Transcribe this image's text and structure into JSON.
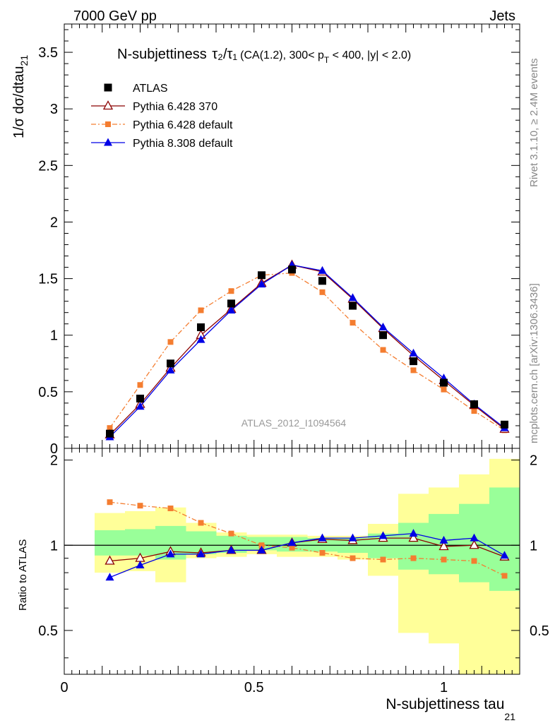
{
  "header": {
    "left": "7000 GeV pp",
    "right": "Jets"
  },
  "side_labels": {
    "rivet": "Rivet 3.1.10, ≥ 2.4M events",
    "mcplots": "mcplots.cern.ch [arXiv:1306.3436]"
  },
  "chart_data": [
    {
      "type": "scatter",
      "title_main": "N-subjettiness ",
      "title_tau_ratio": "τ₂/τ₁",
      "title_details": "(CA(1.2), 300< p",
      "title_sub": "T",
      "title_tail": " < 400, |y| < 2.0)",
      "ylabel_main": "1/σ dσ/dtau",
      "ylabel_sub": "21",
      "watermark": "ATLAS_2012_I1094564",
      "xlim": [
        0,
        1.2
      ],
      "ylim": [
        0,
        3.75
      ],
      "y_ticks": [
        0,
        0.5,
        1,
        1.5,
        2,
        2.5,
        3,
        3.5
      ],
      "y_tick_labels": [
        "0",
        "0.5",
        "1",
        "1.5",
        "2",
        "2.5",
        "3",
        "3.5"
      ],
      "legend_position": "top-left",
      "x": [
        0.12,
        0.2,
        0.28,
        0.36,
        0.44,
        0.52,
        0.6,
        0.68,
        0.76,
        0.84,
        0.92,
        1.0,
        1.08,
        1.16
      ],
      "series": [
        {
          "name": "ATLAS",
          "style": "square",
          "color": "#000000",
          "values": [
            0.13,
            0.44,
            0.75,
            1.07,
            1.28,
            1.53,
            1.58,
            1.48,
            1.26,
            1.0,
            0.77,
            0.58,
            0.39,
            0.21
          ]
        },
        {
          "name": "Pythia 6.428 370",
          "style": "open-triangle",
          "color": "#8b0000",
          "values": [
            0.12,
            0.39,
            0.71,
            1.0,
            1.23,
            1.46,
            1.62,
            1.56,
            1.32,
            1.06,
            0.82,
            0.6,
            0.38,
            0.17
          ]
        },
        {
          "name": "Pythia 6.428 default",
          "style": "small-square-dashdot",
          "color": "#f47d30",
          "values": [
            0.18,
            0.56,
            0.94,
            1.22,
            1.39,
            1.53,
            1.55,
            1.38,
            1.11,
            0.87,
            0.69,
            0.52,
            0.33,
            0.16
          ]
        },
        {
          "name": "Pythia 8.308 default",
          "style": "filled-triangle",
          "color": "#0000e6",
          "values": [
            0.1,
            0.37,
            0.69,
            0.96,
            1.22,
            1.45,
            1.62,
            1.57,
            1.33,
            1.07,
            0.84,
            0.62,
            0.39,
            0.18
          ]
        }
      ]
    },
    {
      "type": "scatter",
      "ylabel": "Ratio to ATLAS",
      "xlabel_main": "N-subjettiness tau",
      "xlabel_sub": "21",
      "xlim": [
        0,
        1.2
      ],
      "x_ticks": [
        0,
        0.5,
        1
      ],
      "x_tick_labels": [
        "0",
        "0.5",
        "1"
      ],
      "ylim": [
        0.35,
        2.2
      ],
      "y_ticks": [
        0.5,
        1,
        2
      ],
      "y_tick_labels": [
        "0.5",
        "1",
        "2"
      ],
      "reference_line": 1,
      "bin_edges": [
        0.08,
        0.16,
        0.24,
        0.32,
        0.4,
        0.48,
        0.56,
        0.64,
        0.72,
        0.8,
        0.88,
        0.96,
        1.04,
        1.12,
        1.2
      ],
      "band_green": [
        [
          0.92,
          1.13
        ],
        [
          0.92,
          1.14
        ],
        [
          0.89,
          1.17
        ],
        [
          0.93,
          1.12
        ],
        [
          0.94,
          1.08
        ],
        [
          0.96,
          1.07
        ],
        [
          0.95,
          1.07
        ],
        [
          0.95,
          1.06
        ],
        [
          0.94,
          1.06
        ],
        [
          0.9,
          1.1
        ],
        [
          0.82,
          1.2
        ],
        [
          0.79,
          1.29
        ],
        [
          0.74,
          1.4
        ],
        [
          0.69,
          1.6
        ]
      ],
      "band_yellow": [
        [
          0.8,
          1.3
        ],
        [
          0.81,
          1.32
        ],
        [
          0.74,
          1.36
        ],
        [
          0.9,
          1.2
        ],
        [
          0.91,
          1.11
        ],
        [
          0.93,
          1.09
        ],
        [
          0.91,
          1.09
        ],
        [
          0.91,
          1.08
        ],
        [
          0.89,
          1.08
        ],
        [
          0.78,
          1.19
        ],
        [
          0.49,
          1.52
        ],
        [
          0.45,
          1.6
        ],
        [
          0.35,
          1.78
        ],
        [
          0.35,
          2.02
        ]
      ],
      "series": [
        {
          "name": "Pythia 6.428 370",
          "style": "open-triangle",
          "color": "#8b0000",
          "values": [
            0.88,
            0.9,
            0.95,
            0.94,
            0.96,
            0.96,
            1.02,
            1.05,
            1.04,
            1.06,
            1.06,
            0.99,
            1.0,
            0.91
          ]
        },
        {
          "name": "Pythia 6.428 default",
          "style": "small-square-dashdot",
          "color": "#f47d30",
          "values": [
            1.42,
            1.38,
            1.35,
            1.2,
            1.1,
            1.0,
            0.98,
            0.94,
            0.9,
            0.89,
            0.9,
            0.89,
            0.88,
            0.78
          ]
        },
        {
          "name": "Pythia 8.308 default",
          "style": "filled-triangle",
          "color": "#0000e6",
          "values": [
            0.77,
            0.85,
            0.93,
            0.93,
            0.96,
            0.96,
            1.02,
            1.06,
            1.06,
            1.08,
            1.1,
            1.04,
            1.06,
            0.92
          ]
        }
      ]
    }
  ]
}
